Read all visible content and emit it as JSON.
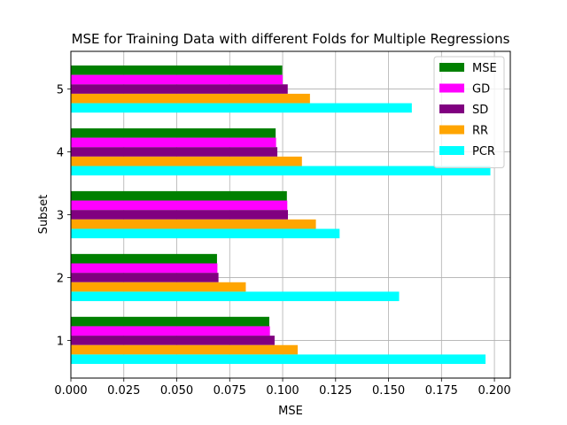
{
  "chart_data": {
    "type": "bar",
    "orientation": "horizontal",
    "title": "MSE for Training Data with different Folds for Multiple Regressions",
    "xlabel": "MSE",
    "ylabel": "Subset",
    "categories": [
      "1",
      "2",
      "3",
      "4",
      "5"
    ],
    "xlim": [
      0.0,
      0.2075
    ],
    "ylim": [
      0.4,
      5.6
    ],
    "xticks": [
      "0.000",
      "0.025",
      "0.050",
      "0.075",
      "0.100",
      "0.125",
      "0.150",
      "0.175",
      "0.200"
    ],
    "grid": true,
    "legend_position": "top-right",
    "series": [
      {
        "name": "MSE",
        "color": "#008000",
        "values": [
          0.0937,
          0.069,
          0.102,
          0.0967,
          0.0998
        ]
      },
      {
        "name": "GD",
        "color": "#ff00ff",
        "values": [
          0.094,
          0.0692,
          0.1022,
          0.0969,
          0.1
        ]
      },
      {
        "name": "SD",
        "color": "#800080",
        "values": [
          0.0962,
          0.0697,
          0.1025,
          0.0975,
          0.1024
        ]
      },
      {
        "name": "RR",
        "color": "#ffa500",
        "values": [
          0.1071,
          0.0826,
          0.1157,
          0.1091,
          0.1129
        ]
      },
      {
        "name": "PCR",
        "color": "#00ffff",
        "values": [
          0.1958,
          0.155,
          0.1269,
          0.1981,
          0.161
        ]
      }
    ]
  }
}
